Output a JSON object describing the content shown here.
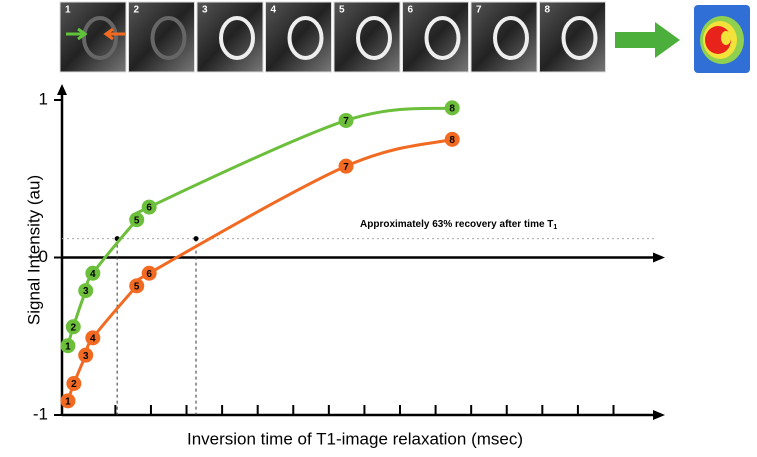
{
  "image_strip": {
    "labels": [
      "1",
      "2",
      "3",
      "4",
      "5",
      "6",
      "7",
      "8"
    ]
  },
  "chart_data": {
    "type": "line",
    "ylabel": "Signal Intensity (au)",
    "xlabel": "Inversion time of T1-image relaxation (msec)",
    "annotation": {
      "text": "Approximately 63% recovery after time T",
      "subscript": "1"
    },
    "recovery_level": 0.12,
    "t1_markers": [
      9.3,
      22.6
    ],
    "point_labels": [
      "1",
      "2",
      "3",
      "4",
      "5",
      "6",
      "7",
      "8"
    ],
    "xlim": [
      0,
      100
    ],
    "xticks": [
      9,
      15,
      21,
      27,
      33,
      39,
      45,
      51,
      57,
      63,
      69,
      75,
      81,
      87,
      93
    ],
    "ylim": [
      -1,
      1
    ],
    "yticks": [
      -1,
      0,
      1
    ],
    "series": [
      {
        "color": "#6cbf3a",
        "x": [
          1.0,
          1.9,
          4.0,
          5.2,
          12.6,
          14.7,
          47.9,
          65.8
        ],
        "values": [
          -0.56,
          -0.44,
          -0.21,
          -0.1,
          0.24,
          0.32,
          0.87,
          0.95
        ]
      },
      {
        "color": "#f26a21",
        "x": [
          1.0,
          2.0,
          4.0,
          5.2,
          12.6,
          14.7,
          47.9,
          65.8
        ],
        "values": [
          -0.91,
          -0.8,
          -0.62,
          -0.51,
          -0.18,
          -0.1,
          0.58,
          0.75
        ]
      }
    ]
  }
}
